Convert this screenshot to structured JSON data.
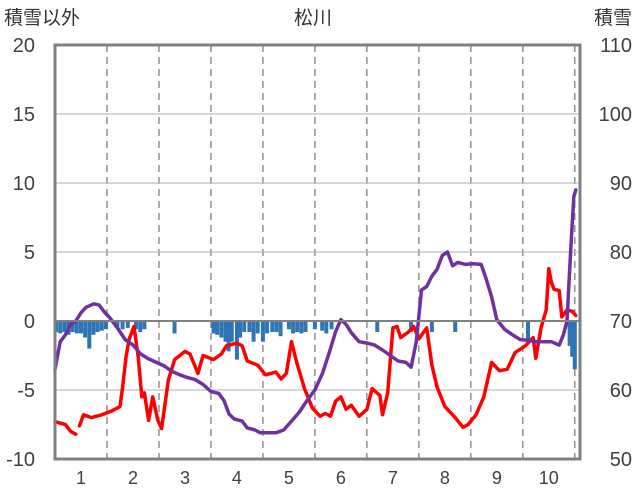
{
  "chart_data": {
    "type": "line",
    "title": "松川",
    "left_axis_label": "積雪以外",
    "right_axis_label": "積雪",
    "ylim_left": [
      -10,
      20
    ],
    "ylim_right": [
      50,
      110
    ],
    "y_ticks_left": [
      "20",
      "15",
      "10",
      "5",
      "0",
      "-5",
      "-10"
    ],
    "y_ticks_right": [
      "110",
      "100",
      "90",
      "80",
      "70",
      "60",
      "50"
    ],
    "x_ticks": [
      "1",
      "2",
      "3",
      "4",
      "5",
      "6",
      "7",
      "8",
      "9",
      "10"
    ],
    "xlim": [
      0.5,
      10.6
    ],
    "grid": true,
    "colors": {
      "red": "#ff0000",
      "purple": "#7030a0",
      "bar": "#2e75b6",
      "axis": "#808080"
    },
    "series": [
      {
        "color": "#ff0000",
        "axis": "left",
        "segments": [
          [
            [
              0.5,
              -7.3
            ],
            [
              0.7,
              -7.5
            ],
            [
              0.8,
              -8.0
            ],
            [
              0.9,
              -8.2
            ]
          ],
          [
            [
              0.97,
              -7.6
            ],
            [
              1.05,
              -6.8
            ],
            [
              1.2,
              -7.0
            ],
            [
              1.4,
              -6.8
            ],
            [
              1.6,
              -6.5
            ],
            [
              1.75,
              -6.2
            ],
            [
              1.8,
              -4.8
            ],
            [
              1.87,
              -2.5
            ],
            [
              1.93,
              -1.3
            ],
            [
              2.02,
              -0.4
            ],
            [
              2.1,
              -2.6
            ],
            [
              2.17,
              -5.5
            ],
            [
              2.22,
              -5.2
            ],
            [
              2.3,
              -7.2
            ],
            [
              2.38,
              -5.5
            ],
            [
              2.48,
              -7.2
            ],
            [
              2.55,
              -7.8
            ],
            [
              2.68,
              -4.3
            ],
            [
              2.8,
              -2.8
            ],
            [
              3.0,
              -2.2
            ],
            [
              3.1,
              -2.4
            ],
            [
              3.25,
              -3.8
            ],
            [
              3.35,
              -2.5
            ],
            [
              3.55,
              -2.8
            ],
            [
              3.7,
              -2.4
            ],
            [
              3.8,
              -1.8
            ],
            [
              4.0,
              -1.6
            ],
            [
              4.1,
              -1.8
            ],
            [
              4.2,
              -2.9
            ],
            [
              4.4,
              -3.2
            ],
            [
              4.55,
              -3.9
            ],
            [
              4.75,
              -3.7
            ],
            [
              4.85,
              -4.2
            ],
            [
              4.95,
              -3.8
            ],
            [
              5.05,
              -1.5
            ],
            [
              5.15,
              -3.0
            ],
            [
              5.3,
              -4.9
            ],
            [
              5.45,
              -6.3
            ],
            [
              5.6,
              -6.9
            ],
            [
              5.7,
              -6.7
            ],
            [
              5.8,
              -6.9
            ],
            [
              5.9,
              -5.8
            ],
            [
              6.0,
              -5.5
            ],
            [
              6.1,
              -6.4
            ],
            [
              6.2,
              -6.1
            ],
            [
              6.35,
              -6.9
            ],
            [
              6.5,
              -6.4
            ],
            [
              6.6,
              -4.9
            ],
            [
              6.75,
              -5.4
            ],
            [
              6.8,
              -6.8
            ],
            [
              6.9,
              -5.2
            ],
            [
              7.0,
              -0.5
            ],
            [
              7.08,
              -0.4
            ],
            [
              7.15,
              -1.2
            ],
            [
              7.3,
              -0.8
            ],
            [
              7.4,
              -0.4
            ],
            [
              7.5,
              -1.3
            ],
            [
              7.65,
              -0.5
            ],
            [
              7.75,
              -3.2
            ],
            [
              7.85,
              -4.8
            ],
            [
              8.0,
              -6.2
            ],
            [
              8.2,
              -7.0
            ],
            [
              8.35,
              -7.7
            ],
            [
              8.45,
              -7.5
            ],
            [
              8.6,
              -6.8
            ],
            [
              8.75,
              -5.5
            ],
            [
              8.9,
              -3.0
            ],
            [
              9.05,
              -3.6
            ],
            [
              9.2,
              -3.5
            ],
            [
              9.35,
              -2.3
            ],
            [
              9.55,
              -1.8
            ],
            [
              9.7,
              -1.2
            ],
            [
              9.75,
              -2.7
            ],
            [
              9.85,
              -0.5
            ],
            [
              9.95,
              0.8
            ],
            [
              10.0,
              3.8
            ],
            [
              10.05,
              2.8
            ],
            [
              10.1,
              2.3
            ],
            [
              10.2,
              2.2
            ],
            [
              10.25,
              0.3
            ],
            [
              10.35,
              0.8
            ],
            [
              10.45,
              0.7
            ],
            [
              10.52,
              0.4
            ]
          ]
        ]
      },
      {
        "color": "#7030a0",
        "axis": "right",
        "segments": [
          [
            [
              0.5,
              63.0
            ],
            [
              0.6,
              67.0
            ],
            [
              0.7,
              68.0
            ],
            [
              0.8,
              69.5
            ],
            [
              0.9,
              70.0
            ],
            [
              1.0,
              71.2
            ],
            [
              1.1,
              72.0
            ],
            [
              1.25,
              72.5
            ],
            [
              1.35,
              72.3
            ],
            [
              1.45,
              71.3
            ],
            [
              1.55,
              70.5
            ],
            [
              1.7,
              69.0
            ],
            [
              1.85,
              67.3
            ],
            [
              2.0,
              66.5
            ],
            [
              2.15,
              65.2
            ],
            [
              2.3,
              64.5
            ],
            [
              2.45,
              64.0
            ],
            [
              2.6,
              63.5
            ],
            [
              2.75,
              62.7
            ],
            [
              2.9,
              62.2
            ],
            [
              3.05,
              61.8
            ],
            [
              3.2,
              61.5
            ],
            [
              3.35,
              60.8
            ],
            [
              3.5,
              59.8
            ],
            [
              3.65,
              59.5
            ],
            [
              3.75,
              58.5
            ],
            [
              3.85,
              56.5
            ],
            [
              3.95,
              55.8
            ],
            [
              4.1,
              55.5
            ],
            [
              4.2,
              54.5
            ],
            [
              4.35,
              54.2
            ],
            [
              4.45,
              53.8
            ],
            [
              4.6,
              53.8
            ],
            [
              4.75,
              53.8
            ],
            [
              4.9,
              54.2
            ],
            [
              5.05,
              55.5
            ],
            [
              5.2,
              56.8
            ],
            [
              5.35,
              58.5
            ],
            [
              5.5,
              60.0
            ],
            [
              5.65,
              62.5
            ],
            [
              5.8,
              66.0
            ],
            [
              5.9,
              68.5
            ],
            [
              6.0,
              70.2
            ],
            [
              6.1,
              69.5
            ],
            [
              6.2,
              68.3
            ],
            [
              6.35,
              67.0
            ],
            [
              6.5,
              66.8
            ],
            [
              6.65,
              66.5
            ],
            [
              6.8,
              65.8
            ],
            [
              6.95,
              65.0
            ],
            [
              7.1,
              64.2
            ],
            [
              7.25,
              64.0
            ],
            [
              7.35,
              63.3
            ],
            [
              7.45,
              67.0
            ],
            [
              7.55,
              74.5
            ],
            [
              7.65,
              75.0
            ],
            [
              7.75,
              76.5
            ],
            [
              7.85,
              77.5
            ],
            [
              7.95,
              79.5
            ],
            [
              8.05,
              80.0
            ],
            [
              8.15,
              78.0
            ],
            [
              8.25,
              78.5
            ],
            [
              8.4,
              78.2
            ],
            [
              8.55,
              78.3
            ],
            [
              8.7,
              78.2
            ],
            [
              8.8,
              76.0
            ],
            [
              8.9,
              73.5
            ],
            [
              9.0,
              70.2
            ],
            [
              9.15,
              68.8
            ],
            [
              9.3,
              68.0
            ],
            [
              9.45,
              67.3
            ],
            [
              9.6,
              67.2
            ],
            [
              9.75,
              67.0
            ],
            [
              9.9,
              67.0
            ],
            [
              10.05,
              67.0
            ],
            [
              10.2,
              66.5
            ],
            [
              10.28,
              68.0
            ],
            [
              10.35,
              70.0
            ],
            [
              10.42,
              80.0
            ],
            [
              10.48,
              88.0
            ],
            [
              10.52,
              89.0
            ]
          ]
        ]
      }
    ],
    "bars": {
      "color": "#2e75b6",
      "axis": "left",
      "values": [
        [
          0.52,
          -0.8
        ],
        [
          0.6,
          -0.9
        ],
        [
          0.68,
          -0.8
        ],
        [
          0.76,
          -1.0
        ],
        [
          0.84,
          -0.8
        ],
        [
          0.92,
          -0.9
        ],
        [
          1.0,
          -0.9
        ],
        [
          1.08,
          -1.2
        ],
        [
          1.16,
          -2.0
        ],
        [
          1.24,
          -1.0
        ],
        [
          1.32,
          -0.8
        ],
        [
          1.4,
          -0.7
        ],
        [
          1.48,
          -0.6
        ],
        [
          1.7,
          -0.5
        ],
        [
          1.8,
          -0.6
        ],
        [
          1.9,
          -0.5
        ],
        [
          2.06,
          -0.6
        ],
        [
          2.14,
          -0.8
        ],
        [
          2.22,
          -0.6
        ],
        [
          2.8,
          -0.9
        ],
        [
          3.55,
          -0.9
        ],
        [
          3.62,
          -1.0
        ],
        [
          3.7,
          -1.2
        ],
        [
          3.78,
          -1.5
        ],
        [
          3.84,
          -2.2
        ],
        [
          3.9,
          -1.5
        ],
        [
          4.0,
          -2.8
        ],
        [
          4.06,
          -1.2
        ],
        [
          4.14,
          -0.8
        ],
        [
          4.24,
          -0.8
        ],
        [
          4.32,
          -1.5
        ],
        [
          4.4,
          -0.9
        ],
        [
          4.5,
          -1.5
        ],
        [
          4.58,
          -0.9
        ],
        [
          4.68,
          -0.8
        ],
        [
          4.76,
          -0.8
        ],
        [
          4.84,
          -1.1
        ],
        [
          5.0,
          -0.6
        ],
        [
          5.08,
          -0.9
        ],
        [
          5.16,
          -0.8
        ],
        [
          5.24,
          -0.9
        ],
        [
          5.32,
          -0.8
        ],
        [
          5.5,
          -0.6
        ],
        [
          5.64,
          -0.7
        ],
        [
          5.72,
          -0.9
        ],
        [
          5.82,
          -0.6
        ],
        [
          6.7,
          -0.8
        ],
        [
          7.35,
          -0.8
        ],
        [
          7.75,
          -0.8
        ],
        [
          8.2,
          -0.8
        ],
        [
          9.6,
          -1.5
        ],
        [
          10.4,
          -1.8
        ],
        [
          10.45,
          -2.6
        ],
        [
          10.5,
          -3.5
        ]
      ]
    }
  }
}
